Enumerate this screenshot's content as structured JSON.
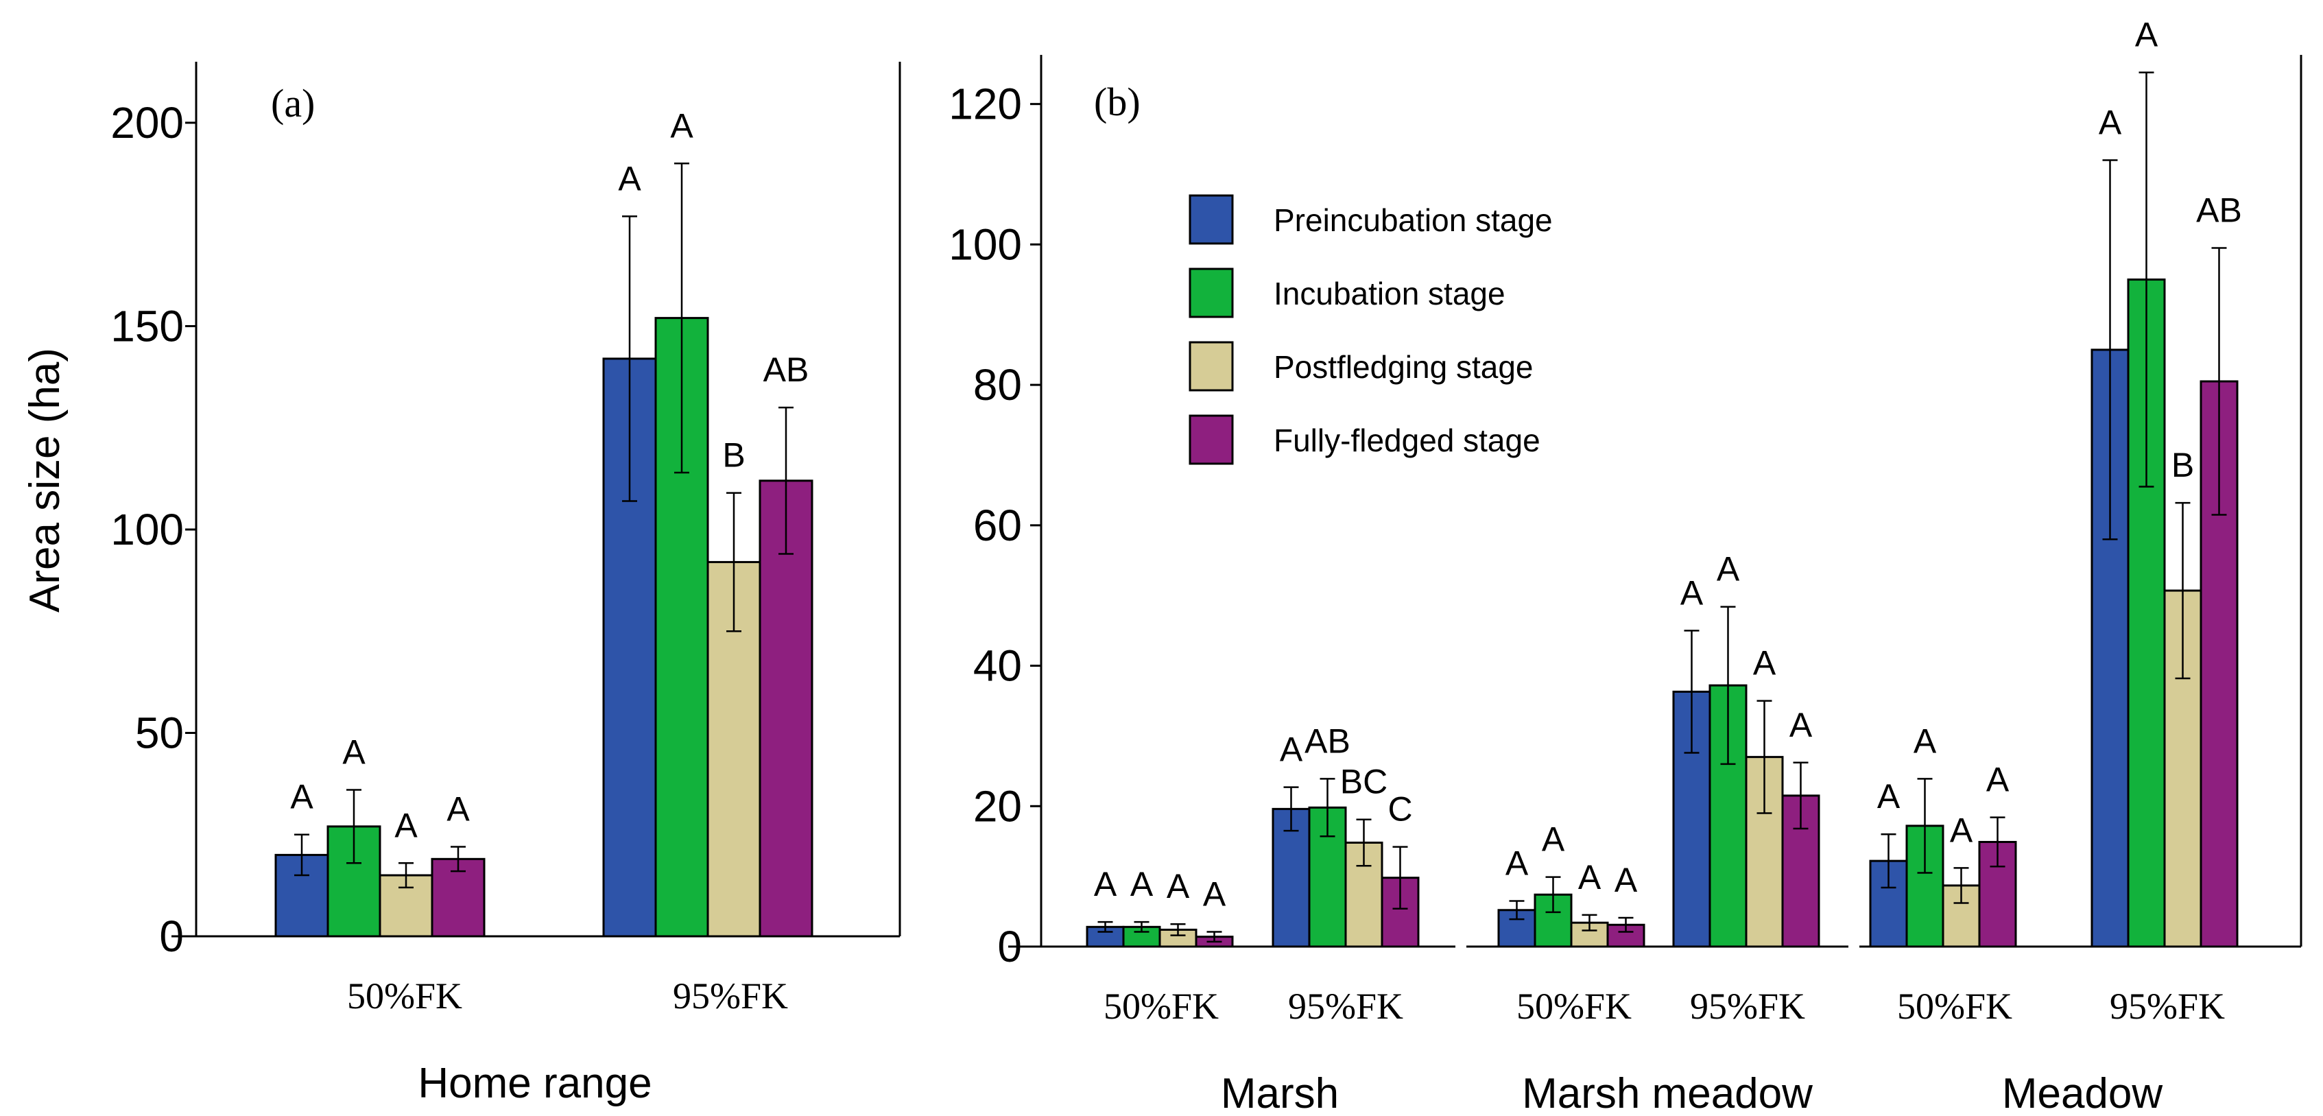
{
  "colors": {
    "Preincubation stage": "#2e54a9",
    "Incubation stage": "#12b23c",
    "Postfledging stage": "#d6cc96",
    "Fully-fledged stage": "#8e1f7f",
    "axis": "#000000"
  },
  "legend": {
    "entries": [
      "Preincubation stage",
      "Incubation stage",
      "Postfledging stage",
      "Fully-fledged stage"
    ]
  },
  "chart_data": [
    {
      "type": "bar",
      "panel_label": "(a)",
      "ylabel": "Area size  (ha)",
      "ylim": [
        0,
        215
      ],
      "yticks": [
        0,
        50,
        100,
        150,
        200
      ],
      "groups": [
        {
          "label": "Home range",
          "categories": [
            "50%FK",
            "95%FK"
          ],
          "series": [
            {
              "name": "Preincubation stage",
              "values": [
                20,
                142
              ],
              "errors": [
                5,
                35
              ],
              "letters": [
                "A",
                "A"
              ]
            },
            {
              "name": "Incubation stage",
              "values": [
                27,
                152
              ],
              "errors": [
                9,
                38
              ],
              "letters": [
                "A",
                "A"
              ]
            },
            {
              "name": "Postfledging stage",
              "values": [
                15,
                92
              ],
              "errors": [
                3,
                17
              ],
              "letters": [
                "A",
                "B"
              ]
            },
            {
              "name": "Fully-fledged stage",
              "values": [
                19,
                112
              ],
              "errors": [
                3,
                18
              ],
              "letters": [
                "A",
                "AB"
              ]
            }
          ]
        }
      ]
    },
    {
      "type": "bar",
      "panel_label": "(b)",
      "ylabel": "",
      "ylim": [
        0,
        127
      ],
      "yticks": [
        0,
        20,
        40,
        60,
        80,
        100,
        120
      ],
      "groups": [
        {
          "label": "Marsh",
          "categories": [
            "50%FK",
            "95%FK"
          ],
          "series": [
            {
              "name": "Preincubation stage",
              "values": [
                2.8,
                19.6
              ],
              "errors": [
                0.7,
                3.1
              ],
              "letters": [
                "A",
                "A"
              ]
            },
            {
              "name": "Incubation stage",
              "values": [
                2.8,
                19.8
              ],
              "errors": [
                0.7,
                4.1
              ],
              "letters": [
                "A",
                "AB"
              ]
            },
            {
              "name": "Postfledging stage",
              "values": [
                2.4,
                14.8
              ],
              "errors": [
                0.8,
                3.3
              ],
              "letters": [
                "A",
                "BC"
              ]
            },
            {
              "name": "Fully-fledged stage",
              "values": [
                1.4,
                9.8
              ],
              "errors": [
                0.7,
                4.4
              ],
              "letters": [
                "A",
                "C"
              ]
            }
          ]
        },
        {
          "label": "Marsh meadow",
          "categories": [
            "50%FK",
            "95%FK"
          ],
          "series": [
            {
              "name": "Preincubation stage",
              "values": [
                5.2,
                36.3
              ],
              "errors": [
                1.3,
                8.7
              ],
              "letters": [
                "A",
                "A"
              ]
            },
            {
              "name": "Incubation stage",
              "values": [
                7.4,
                37.2
              ],
              "errors": [
                2.5,
                11.2
              ],
              "letters": [
                "A",
                "A"
              ]
            },
            {
              "name": "Postfledging stage",
              "values": [
                3.4,
                27
              ],
              "errors": [
                1.1,
                8
              ],
              "letters": [
                "A",
                "A"
              ]
            },
            {
              "name": "Fully-fledged stage",
              "values": [
                3.1,
                21.5
              ],
              "errors": [
                1,
                4.7
              ],
              "letters": [
                "A",
                "A"
              ]
            }
          ]
        },
        {
          "label": "Meadow",
          "categories": [
            "50%FK",
            "95%FK"
          ],
          "series": [
            {
              "name": "Preincubation stage",
              "values": [
                12.2,
                85
              ],
              "errors": [
                3.8,
                27
              ],
              "letters": [
                "A",
                "A"
              ]
            },
            {
              "name": "Incubation stage",
              "values": [
                17.2,
                95
              ],
              "errors": [
                6.7,
                29.5
              ],
              "letters": [
                "A",
                "A"
              ]
            },
            {
              "name": "Postfledging stage",
              "values": [
                8.7,
                50.7
              ],
              "errors": [
                2.5,
                12.5
              ],
              "letters": [
                "A",
                "B"
              ]
            },
            {
              "name": "Fully-fledged stage",
              "values": [
                14.9,
                80.5
              ],
              "errors": [
                3.5,
                19
              ],
              "letters": [
                "A",
                "AB"
              ]
            }
          ]
        }
      ]
    }
  ]
}
